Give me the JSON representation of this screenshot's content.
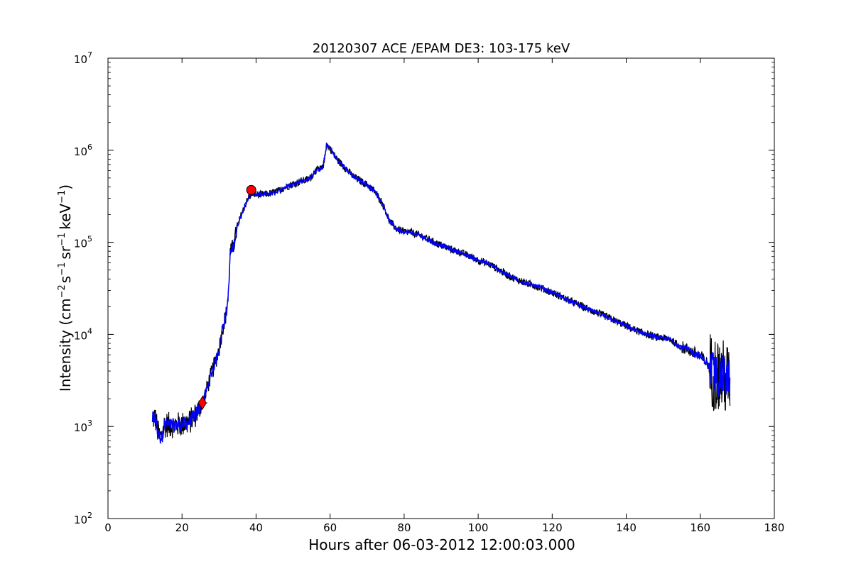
{
  "chart_data": {
    "type": "line",
    "title": "20120307 ACE /EPAM DE3: 103-175 keV",
    "xlabel": "Hours after 06-03-2012 12:00:03.000",
    "ylabel": {
      "prefix": "Intensity (cm",
      "sup1": "−2",
      "mid1": "s",
      "sup2": "−1",
      "mid2": "sr",
      "sup3": "−1",
      "mid3": "keV",
      "sup4": "−1",
      "suffix": ")"
    },
    "xlim": [
      0,
      180
    ],
    "ylim": [
      100,
      10000000
    ],
    "yscale": "log",
    "grid": false,
    "x_ticks": [
      "0",
      "20",
      "40",
      "60",
      "80",
      "100",
      "120",
      "140",
      "160",
      "180"
    ],
    "y_ticks": [
      {
        "value": 100,
        "base": "10",
        "exp": "2"
      },
      {
        "value": 1000,
        "base": "10",
        "exp": "3"
      },
      {
        "value": 10000,
        "base": "10",
        "exp": "4"
      },
      {
        "value": 100000,
        "base": "10",
        "exp": "5"
      },
      {
        "value": 1000000,
        "base": "10",
        "exp": "6"
      },
      {
        "value": 10000000,
        "base": "10",
        "exp": "7"
      }
    ],
    "series": [
      {
        "color": "#0000ff",
        "points": [
          [
            12.0,
            1200
          ],
          [
            12.6,
            1250
          ],
          [
            13.0,
            1150
          ],
          [
            13.4,
            900
          ],
          [
            13.9,
            780
          ],
          [
            14.6,
            760
          ],
          [
            15.1,
            1020
          ],
          [
            16.0,
            1050
          ],
          [
            17.5,
            1020
          ],
          [
            19.0,
            1050
          ],
          [
            20.0,
            1060
          ],
          [
            21.0,
            1080
          ],
          [
            22.0,
            1120
          ],
          [
            23.0,
            1250
          ],
          [
            24.0,
            1400
          ],
          [
            25.0,
            1650
          ],
          [
            26.0,
            2000
          ],
          [
            27.0,
            2800
          ],
          [
            28.0,
            3800
          ],
          [
            29.0,
            5000
          ],
          [
            30.0,
            7000
          ],
          [
            31.0,
            12000
          ],
          [
            32.0,
            17000
          ],
          [
            32.6,
            30000
          ],
          [
            33.0,
            75000
          ],
          [
            34.0,
            95000
          ],
          [
            35.0,
            150000
          ],
          [
            36.0,
            200000
          ],
          [
            37.0,
            250000
          ],
          [
            38.0,
            310000
          ],
          [
            39.0,
            340000
          ],
          [
            40.0,
            330000
          ],
          [
            42.0,
            330000
          ],
          [
            44.0,
            340000
          ],
          [
            46.0,
            360000
          ],
          [
            48.0,
            400000
          ],
          [
            50.0,
            430000
          ],
          [
            52.0,
            460000
          ],
          [
            54.0,
            480000
          ],
          [
            55.0,
            520000
          ],
          [
            56.0,
            600000
          ],
          [
            57.0,
            620000
          ],
          [
            58.0,
            640000
          ],
          [
            58.7,
            900000
          ],
          [
            59.0,
            1150000
          ],
          [
            60.0,
            1050000
          ],
          [
            61.0,
            900000
          ],
          [
            62.0,
            780000
          ],
          [
            64.0,
            650000
          ],
          [
            66.0,
            530000
          ],
          [
            68.0,
            470000
          ],
          [
            70.0,
            420000
          ],
          [
            72.0,
            360000
          ],
          [
            74.0,
            270000
          ],
          [
            75.0,
            220000
          ],
          [
            76.0,
            170000
          ],
          [
            78.0,
            140000
          ],
          [
            80.0,
            130000
          ],
          [
            82.0,
            128000
          ],
          [
            84.0,
            120000
          ],
          [
            86.0,
            110000
          ],
          [
            88.0,
            100000
          ],
          [
            90.0,
            93000
          ],
          [
            92.0,
            86000
          ],
          [
            95.0,
            78000
          ],
          [
            98.0,
            70000
          ],
          [
            100.0,
            64000
          ],
          [
            103.0,
            58000
          ],
          [
            105.0,
            52000
          ],
          [
            108.0,
            44000
          ],
          [
            110.0,
            40000
          ],
          [
            113.0,
            36000
          ],
          [
            116.0,
            33000
          ],
          [
            120.0,
            28500
          ],
          [
            123.0,
            25000
          ],
          [
            126.0,
            22000
          ],
          [
            130.0,
            18500
          ],
          [
            134.0,
            16000
          ],
          [
            138.0,
            13500
          ],
          [
            142.0,
            11300
          ],
          [
            145.0,
            10200
          ],
          [
            148.0,
            9300
          ],
          [
            151.0,
            9000
          ],
          [
            152.0,
            8800
          ],
          [
            154.0,
            7600
          ],
          [
            157.0,
            6700
          ],
          [
            160.0,
            5800
          ],
          [
            162.0,
            4800
          ],
          [
            163.0,
            4000
          ],
          [
            165.0,
            3600
          ],
          [
            167.0,
            3300
          ],
          [
            168.0,
            3200
          ]
        ]
      }
    ],
    "markers": [
      {
        "shape": "diamond",
        "color": "#ff0000",
        "x": 25.5,
        "y": 1800
      },
      {
        "shape": "circle",
        "color": "#ff0000",
        "x": 38.7,
        "y": 370000
      }
    ],
    "colors": {
      "line": "#0000ff",
      "noise": "#000000",
      "marker": "#ff0000"
    }
  }
}
